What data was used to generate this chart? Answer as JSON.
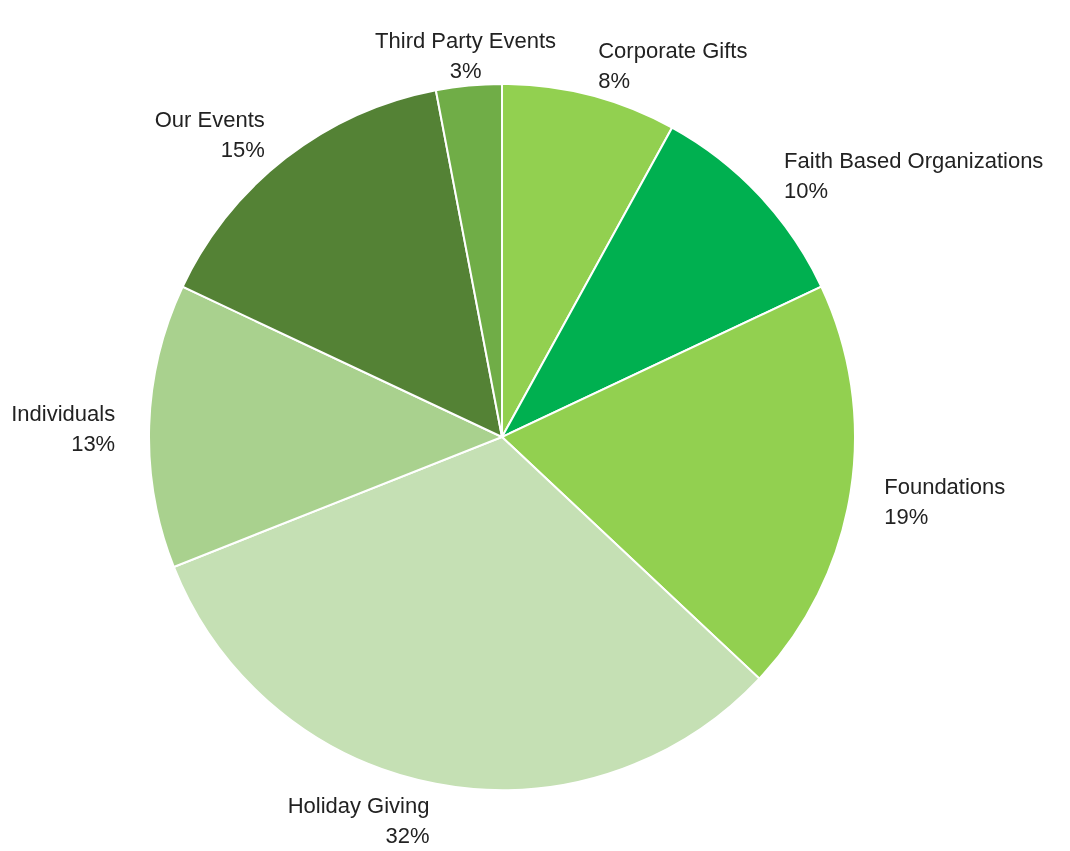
{
  "chart_data": {
    "type": "pie",
    "categories": [
      "Corporate Gifts",
      "Faith Based Organizations",
      "Foundations",
      "Holiday Giving",
      "Individuals",
      "Our Events",
      "Third Party Events"
    ],
    "values": [
      8,
      10,
      19,
      32,
      13,
      15,
      3
    ],
    "colors": [
      "#92d050",
      "#00b050",
      "#92d050",
      "#c5e0b4",
      "#a9d18e",
      "#548235",
      "#70ad47"
    ],
    "value_labels": [
      "8%",
      "10%",
      "19%",
      "32%",
      "13%",
      "15%",
      "3%"
    ],
    "legend": false
  }
}
